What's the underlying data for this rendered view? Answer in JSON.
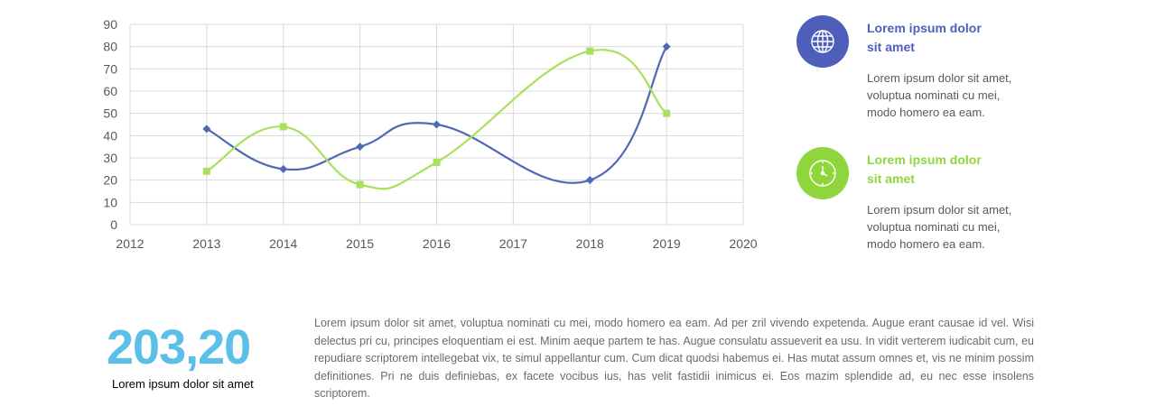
{
  "chart_data": {
    "type": "line",
    "x": [
      2013,
      2014,
      2015,
      2016,
      2018,
      2019
    ],
    "series": [
      {
        "values": [
          43,
          25,
          35,
          45,
          20,
          80
        ],
        "color": "#5068b5",
        "marker": "diamond"
      },
      {
        "values": [
          24,
          44,
          18,
          28,
          78,
          50
        ],
        "color": "#a9e05c",
        "marker": "square"
      }
    ],
    "xlim": [
      2012,
      2020
    ],
    "ylim": [
      0,
      90
    ],
    "xticks": [
      2012,
      2013,
      2014,
      2015,
      2016,
      2017,
      2018,
      2019,
      2020
    ],
    "yticks": [
      0,
      10,
      20,
      30,
      40,
      50,
      60,
      70,
      80,
      90
    ],
    "grid": true,
    "smooth": true
  },
  "legend": [
    {
      "title_line1": "Lorem ipsum dolor",
      "title_line2": "sit amet",
      "desc_line1": "Lorem ipsum dolor sit amet,",
      "desc_line2": "voluptua nominati cu mei,",
      "desc_line3": "modo homero ea eam.",
      "color": "#4e5fbb",
      "icon": "globe-icon"
    },
    {
      "title_line1": "Lorem ipsum dolor",
      "title_line2": "sit amet",
      "desc_line1": "Lorem ipsum dolor sit amet,",
      "desc_line2": "voluptua nominati cu mei,",
      "desc_line3": "modo homero ea eam.",
      "color": "#8fd63c",
      "icon": "clock-icon"
    }
  ],
  "kpi": {
    "value": "203,20",
    "label": "Lorem ipsum dolor sit amet",
    "color": "#5bc0e8"
  },
  "body_text": "Lorem ipsum dolor sit amet, voluptua nominati cu mei, modo homero ea eam. Ad per zril vivendo expetenda. Augue erant causae id vel. Wisi delectus pri cu, principes eloquentiam ei est. Minim aeque partem te has. Augue consulatu assueverit ea usu. In vidit verterem iudicabit cum, eu repudiare scriptorem intellegebat vix, te simul appellantur cum. Cum dicat quodsi habemus ei. Has mutat assum omnes et, vis ne minim possim definitiones. Pri ne duis definiebas, ex facete vocibus ius, has velit fastidii inimicus ei. Eos mazim splendide ad, eu nec esse insolens scriptorem."
}
